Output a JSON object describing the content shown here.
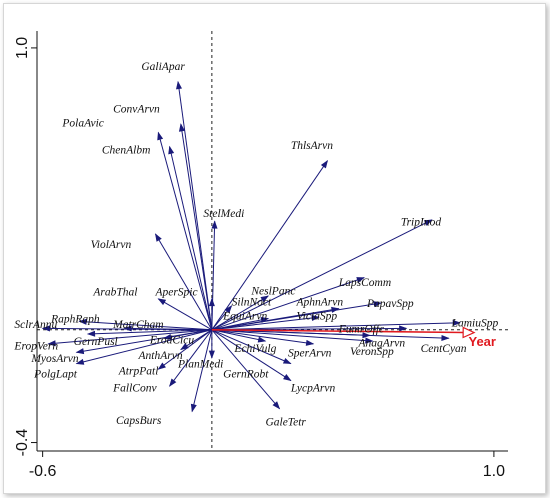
{
  "chart_data": {
    "type": "scatter",
    "title": "",
    "xlabel": "",
    "ylabel": "",
    "xlim": [
      -0.62,
      1.05
    ],
    "ylim": [
      -0.43,
      1.06
    ],
    "x_ticks": [
      {
        "value": -0.6,
        "label": "-0.6"
      },
      {
        "value": 1.0,
        "label": "1.0"
      }
    ],
    "y_ticks": [
      {
        "value": 1.0,
        "label": "1.0"
      },
      {
        "value": -0.4,
        "label": "-0.4"
      }
    ],
    "axis_color": "#111111",
    "arrow_color": "#1a1a7a",
    "year_color": "#e0191f",
    "species": [
      {
        "label": "GaliApar",
        "x": -0.12,
        "y": 0.88,
        "lx": -0.25,
        "ly": 0.935
      },
      {
        "label": "ConvArvn",
        "x": -0.11,
        "y": 0.73,
        "lx": -0.35,
        "ly": 0.785
      },
      {
        "label": "PolaAvic",
        "x": -0.19,
        "y": 0.7,
        "lx": -0.53,
        "ly": 0.735
      },
      {
        "label": "ChenAlbm",
        "x": -0.15,
        "y": 0.65,
        "lx": -0.39,
        "ly": 0.64
      },
      {
        "label": "ThlsArvn",
        "x": 0.41,
        "y": 0.6,
        "lx": 0.28,
        "ly": 0.655
      },
      {
        "label": "StelMedi",
        "x": 0.01,
        "y": 0.385,
        "lx": -0.03,
        "ly": 0.415
      },
      {
        "label": "TripInod",
        "x": 0.78,
        "y": 0.39,
        "lx": 0.67,
        "ly": 0.385
      },
      {
        "label": "ViolArvn",
        "x": -0.2,
        "y": 0.34,
        "lx": -0.43,
        "ly": 0.305
      },
      {
        "label": "ArabThal",
        "x": -0.19,
        "y": 0.11,
        "lx": -0.42,
        "ly": 0.135
      },
      {
        "label": "AperSpic",
        "x": 0.0,
        "y": 0.11,
        "lx": -0.2,
        "ly": 0.135
      },
      {
        "label": "NeslPanc",
        "x": 0.2,
        "y": 0.12,
        "lx": 0.14,
        "ly": 0.14
      },
      {
        "label": "SilnNoct",
        "x": 0.07,
        "y": 0.085,
        "lx": 0.07,
        "ly": 0.1
      },
      {
        "label": "LapsComm",
        "x": 0.54,
        "y": 0.185,
        "lx": 0.45,
        "ly": 0.17
      },
      {
        "label": "AphnArvn",
        "x": 0.45,
        "y": 0.075,
        "lx": 0.3,
        "ly": 0.1
      },
      {
        "label": "PapavSpp",
        "x": 0.6,
        "y": 0.095,
        "lx": 0.55,
        "ly": 0.095
      },
      {
        "label": "ViciaSpp",
        "x": 0.38,
        "y": 0.045,
        "lx": 0.3,
        "ly": 0.05
      },
      {
        "label": "EquiArvn",
        "x": 0.2,
        "y": 0.04,
        "lx": 0.04,
        "ly": 0.05
      },
      {
        "label": "FumrOffc",
        "x": 0.69,
        "y": 0.005,
        "lx": 0.45,
        "ly": 0.005
      },
      {
        "label": "LamiuSpp",
        "x": 0.88,
        "y": 0.025,
        "lx": 0.85,
        "ly": 0.025
      },
      {
        "label": "RaphRaph",
        "x": -0.47,
        "y": 0.03,
        "lx": -0.57,
        "ly": 0.04
      },
      {
        "label": "SclrAnnu",
        "x": -0.6,
        "y": 0.005,
        "lx": -0.7,
        "ly": 0.02
      },
      {
        "label": "MatrCham",
        "x": -0.31,
        "y": 0.005,
        "lx": -0.35,
        "ly": 0.02
      },
      {
        "label": "GernPusl",
        "x": -0.44,
        "y": -0.015,
        "lx": -0.49,
        "ly": -0.04
      },
      {
        "label": "ErodCicu",
        "x": -0.17,
        "y": -0.03,
        "lx": -0.22,
        "ly": -0.035
      },
      {
        "label": "EropVern",
        "x": -0.58,
        "y": -0.05,
        "lx": -0.7,
        "ly": -0.055
      },
      {
        "label": "MyosArvn",
        "x": -0.48,
        "y": -0.08,
        "lx": -0.64,
        "ly": -0.1
      },
      {
        "label": "PolgLapt",
        "x": -0.48,
        "y": -0.12,
        "lx": -0.63,
        "ly": -0.155
      },
      {
        "label": "AnthArvn",
        "x": -0.11,
        "y": -0.07,
        "lx": -0.26,
        "ly": -0.09
      },
      {
        "label": "PlanMedi",
        "x": 0.0,
        "y": -0.1,
        "lx": -0.12,
        "ly": -0.12
      },
      {
        "label": "AtrpPatl",
        "x": -0.19,
        "y": -0.14,
        "lx": -0.33,
        "ly": -0.145
      },
      {
        "label": "FallConv",
        "x": -0.15,
        "y": -0.2,
        "lx": -0.35,
        "ly": -0.205
      },
      {
        "label": "CapsBurs",
        "x": -0.07,
        "y": -0.29,
        "lx": -0.34,
        "ly": -0.32
      },
      {
        "label": "EchiVulg",
        "x": 0.19,
        "y": -0.04,
        "lx": 0.08,
        "ly": -0.065
      },
      {
        "label": "GernRobt",
        "x": 0.28,
        "y": -0.12,
        "lx": 0.04,
        "ly": -0.155
      },
      {
        "label": "LycpArvn",
        "x": 0.28,
        "y": -0.18,
        "lx": 0.28,
        "ly": -0.205
      },
      {
        "label": "GaleTetr",
        "x": 0.24,
        "y": -0.28,
        "lx": 0.19,
        "ly": -0.325
      },
      {
        "label": "SperArvn",
        "x": 0.36,
        "y": -0.05,
        "lx": 0.27,
        "ly": -0.08
      },
      {
        "label": "VeronSpp",
        "x": 0.57,
        "y": -0.04,
        "lx": 0.49,
        "ly": -0.075
      },
      {
        "label": "AnagArvn",
        "x": 0.56,
        "y": -0.02,
        "lx": 0.52,
        "ly": -0.045
      },
      {
        "label": "CentCyan",
        "x": 0.84,
        "y": -0.03,
        "lx": 0.74,
        "ly": -0.065
      }
    ],
    "year": {
      "label": "Year",
      "x": 0.93,
      "y": -0.01,
      "lx": 0.91,
      "ly": -0.04
    }
  }
}
